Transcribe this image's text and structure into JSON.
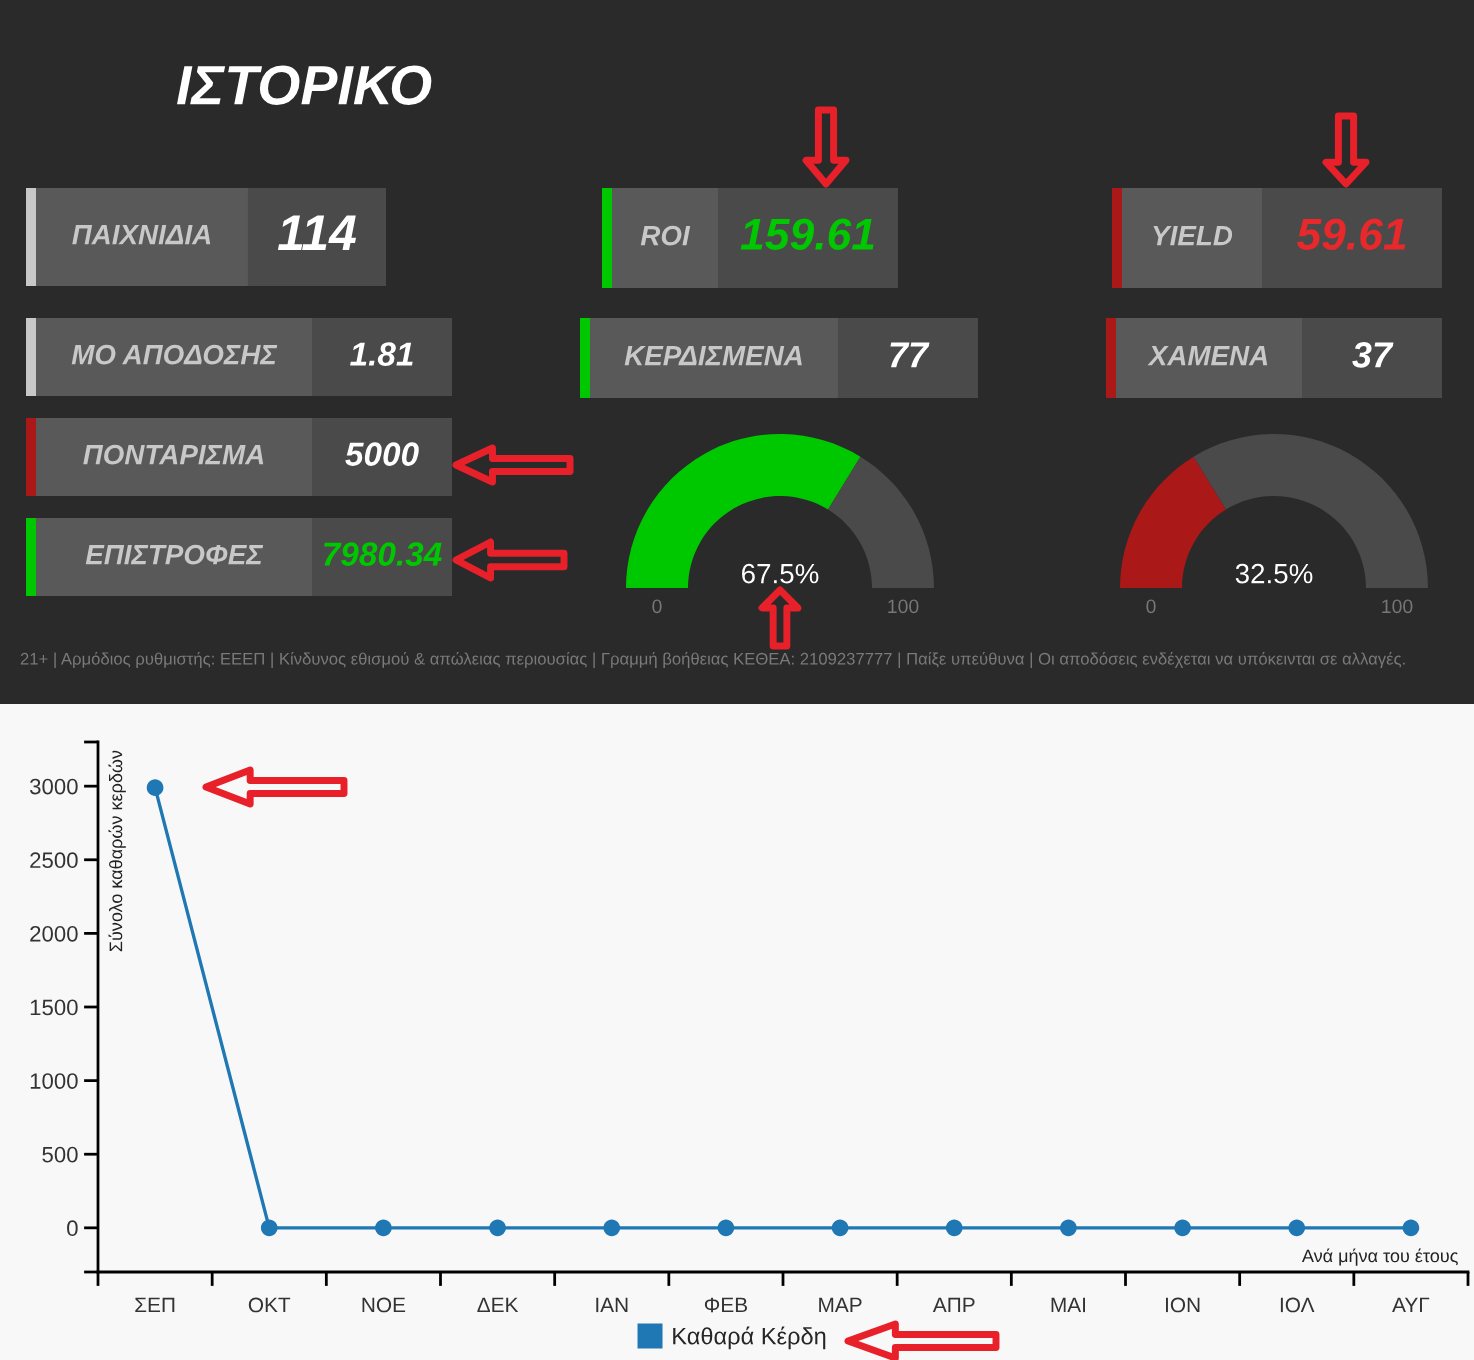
{
  "chart_data": [
    {
      "type": "other",
      "title": "ΙΣΤΟΡΙΚΟ",
      "annotations": [
        "ΠΑΙΧΝΙΔΙΑ",
        "114",
        "ΜΟ ΑΠΟΔΟΣΗΣ",
        "1.81",
        "ΠΟΝΤΑΡΙΣΜΑ",
        "5000",
        "ΕΠΙΣΤΡΟΦΕΣ",
        "7980.34",
        "ROI",
        "159.61",
        "ΚΕΡΔΙΣΜΕΝΑ",
        "77",
        "YIELD",
        "59.61",
        "ΧΑΜΕΝΑ",
        "37",
        "21+ | Αρμόδιος ρυθμιστής: ΕΕΕΠ | Κίνδυνος εθισμού & απώλειας περιουσίας | Γραμμή βοήθειας ΚΕΘΕΑ: 2109237777 | Παίξε υπεύθυνα | Οι αποδόσεις ενδέχεται να υπόκεινται σε αλλαγές."
      ]
    },
    {
      "type": "donut",
      "categories": [
        null,
        null
      ],
      "values": [
        67.5,
        32.5
      ],
      "colors": [
        "#00c800",
        "#4a4a4a"
      ],
      "annotations": [
        "67.5%",
        "0",
        "100"
      ]
    },
    {
      "type": "donut",
      "categories": [
        null,
        null
      ],
      "values": [
        32.5,
        67.5
      ],
      "colors": [
        "#aa1818",
        "#4a4a4a"
      ],
      "annotations": [
        "32.5%",
        "0",
        "100"
      ]
    },
    {
      "type": "line",
      "xlabel": "Ανά μήνα του έτους",
      "ylabel": "Σύνολο καθαρών κερδών",
      "categories": [
        "ΣΕΠ",
        "ΟΚΤ",
        "ΝΟΕ",
        "ΔΕΚ",
        "ΙΑΝ",
        "ΦΕΒ",
        "ΜΑΡ",
        "ΑΠΡ",
        "ΜΑΙ",
        "ΙΟΝ",
        "ΙΟΛ",
        "ΑΥΓ"
      ],
      "series": [
        {
          "name": "Καθαρά Κέρδη",
          "color": "#1f77b4",
          "values": [
            2990,
            0,
            0,
            0,
            0,
            0,
            0,
            0,
            0,
            0,
            0,
            0
          ]
        }
      ],
      "ylim": [
        -300,
        3300
      ],
      "yticks": [
        {
          "value": -300,
          "label": null
        },
        0,
        500,
        1000,
        1500,
        2000,
        2500,
        3000,
        {
          "value": 3300,
          "label": null
        }
      ],
      "grid": false,
      "legend": "bottom",
      "marker": "circle",
      "line_style": "solid"
    }
  ]
}
